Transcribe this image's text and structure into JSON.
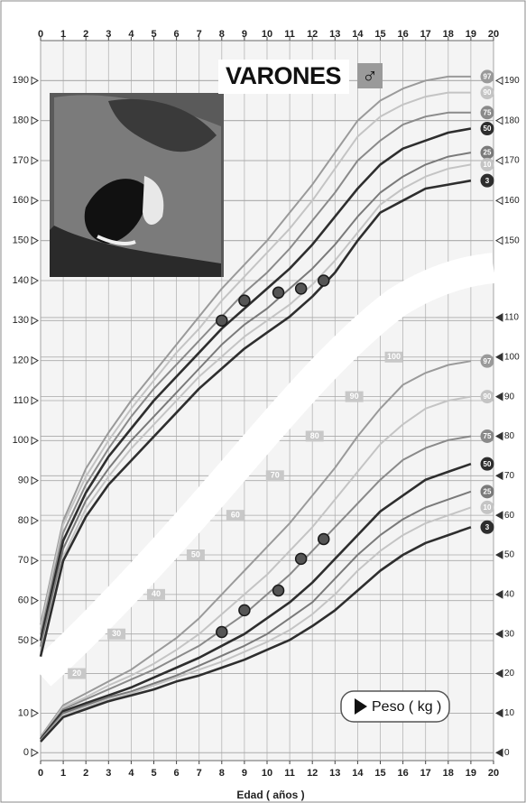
{
  "chart_data": [
    {
      "type": "line",
      "title": "VARONES",
      "symbol": "♂",
      "x": [
        0,
        1,
        2,
        3,
        4,
        5,
        6,
        7,
        8,
        9,
        10,
        11,
        12,
        13,
        14,
        15,
        16,
        17,
        18,
        19
      ],
      "xlim": [
        0,
        20
      ],
      "xticks": [
        0,
        1,
        2,
        3,
        4,
        5,
        6,
        7,
        8,
        9,
        10,
        11,
        12,
        13,
        14,
        15,
        16,
        17,
        18,
        19,
        20
      ],
      "ylim": [
        20,
        200
      ],
      "yticks": [
        50,
        60,
        70,
        80,
        90,
        100,
        110,
        120,
        130,
        140,
        150,
        160,
        170,
        180,
        190
      ],
      "y2lim": [
        20,
        200
      ],
      "y2ticks": [
        150,
        160,
        170,
        180,
        190
      ],
      "grid": true,
      "series": [
        {
          "name": "97",
          "color": "#9a9a9a",
          "values": [
            54,
            80,
            93,
            102,
            110,
            117,
            124,
            131,
            138,
            144,
            150,
            157,
            164,
            172,
            180,
            185,
            188,
            190,
            191,
            191
          ]
        },
        {
          "name": "90",
          "color": "#c4c4c4",
          "values": [
            53,
            79,
            91,
            100,
            108,
            115,
            122,
            128,
            135,
            141,
            147,
            153,
            160,
            168,
            176,
            181,
            184,
            186,
            187,
            187
          ]
        },
        {
          "name": "75",
          "color": "#8a8a8a",
          "values": [
            51.5,
            77,
            89,
            98,
            106,
            113,
            119,
            125,
            131,
            137,
            142,
            148,
            155,
            162,
            170,
            175,
            179,
            181,
            182,
            182
          ]
        },
        {
          "name": "50",
          "color": "#2e2e2e",
          "values": [
            50,
            75,
            87,
            96,
            103,
            110,
            116,
            122,
            128,
            133,
            138,
            143,
            149,
            156,
            163,
            169,
            173,
            175,
            177,
            178
          ]
        },
        {
          "name": "25",
          "color": "#7a7a7a",
          "values": [
            48.5,
            73,
            85,
            93,
            100,
            106,
            112,
            118,
            124,
            129,
            133,
            138,
            143,
            149,
            156,
            162,
            166,
            169,
            171,
            172
          ]
        },
        {
          "name": "10",
          "color": "#c4c4c4",
          "values": [
            47,
            71,
            83,
            91,
            98,
            104,
            110,
            116,
            121,
            126,
            130,
            134,
            139,
            145,
            152,
            159,
            163,
            166,
            168,
            169
          ]
        },
        {
          "name": "3",
          "color": "#2e2e2e",
          "values": [
            46,
            70,
            81,
            89,
            95,
            101,
            107,
            113,
            118,
            123,
            127,
            131,
            136,
            142,
            150,
            157,
            160,
            163,
            164,
            165
          ]
        }
      ],
      "points": {
        "x": [
          8,
          9,
          10.5,
          11.5,
          12.5
        ],
        "values": [
          130,
          135,
          137,
          138,
          140
        ],
        "color": "#555555"
      }
    },
    {
      "type": "line",
      "x_label": "Edad ( años )",
      "y_label": "Peso ( kg )",
      "x": [
        0,
        1,
        2,
        3,
        4,
        5,
        6,
        7,
        8,
        9,
        10,
        11,
        12,
        13,
        14,
        15,
        16,
        17,
        18,
        19
      ],
      "xlim": [
        0,
        20
      ],
      "xticks": [
        0,
        1,
        2,
        3,
        4,
        5,
        6,
        7,
        8,
        9,
        10,
        11,
        12,
        13,
        14,
        15,
        16,
        17,
        18,
        19,
        20
      ],
      "ylim": [
        -2,
        180
      ],
      "yticks": [
        0,
        10
      ],
      "y2lim": [
        -2,
        180
      ],
      "y2ticks": [
        0,
        10,
        20,
        30,
        40,
        50,
        60,
        70,
        80,
        90,
        100,
        110
      ],
      "diagonal_ticks": [
        20,
        30,
        40,
        50,
        60,
        70,
        80,
        90,
        100
      ],
      "grid": true,
      "series": [
        {
          "name": "97",
          "color": "#9a9a9a",
          "values": [
            4,
            12,
            15,
            18,
            21,
            25,
            29,
            34,
            40,
            46,
            52,
            58,
            65,
            72,
            80,
            87,
            93,
            96,
            98,
            99
          ]
        },
        {
          "name": "90",
          "color": "#c4c4c4",
          "values": [
            3.8,
            11.5,
            14,
            17,
            19.5,
            22.5,
            26,
            30,
            35,
            40,
            45,
            51,
            57,
            64,
            71,
            78,
            83,
            87,
            89,
            90
          ]
        },
        {
          "name": "75",
          "color": "#8a8a8a",
          "values": [
            3.6,
            11,
            13.5,
            16,
            18.5,
            21,
            24,
            27,
            31,
            35,
            40,
            45,
            51,
            57,
            63,
            69,
            74,
            77,
            79,
            80
          ]
        },
        {
          "name": "50",
          "color": "#2e2e2e",
          "values": [
            3.4,
            10.5,
            12.5,
            14.5,
            16.5,
            19,
            21.5,
            24,
            27,
            30,
            34,
            38,
            43,
            49,
            55,
            61,
            65,
            69,
            71,
            73
          ]
        },
        {
          "name": "25",
          "color": "#7a7a7a",
          "values": [
            3.2,
            10,
            12,
            14,
            15.5,
            17.5,
            19.5,
            22,
            24.5,
            27,
            30,
            34,
            38,
            44,
            50,
            55,
            59,
            62,
            64,
            66
          ]
        },
        {
          "name": "10",
          "color": "#c4c4c4",
          "values": [
            3,
            9.5,
            11.5,
            13.5,
            15,
            17,
            19,
            21,
            23,
            25.5,
            28,
            31,
            35,
            40,
            46,
            51,
            55,
            58,
            60,
            62
          ]
        },
        {
          "name": "3",
          "color": "#2e2e2e",
          "values": [
            2.8,
            9,
            11,
            13,
            14.5,
            16,
            18,
            19.5,
            21.5,
            23.5,
            26,
            28.5,
            32,
            36,
            41,
            46,
            50,
            53,
            55,
            57
          ]
        }
      ],
      "points": {
        "x": [
          8,
          9,
          10.5,
          11.5,
          12.5
        ],
        "values": [
          30.5,
          36,
          41,
          49,
          54
        ],
        "color": "#555555"
      }
    }
  ]
}
